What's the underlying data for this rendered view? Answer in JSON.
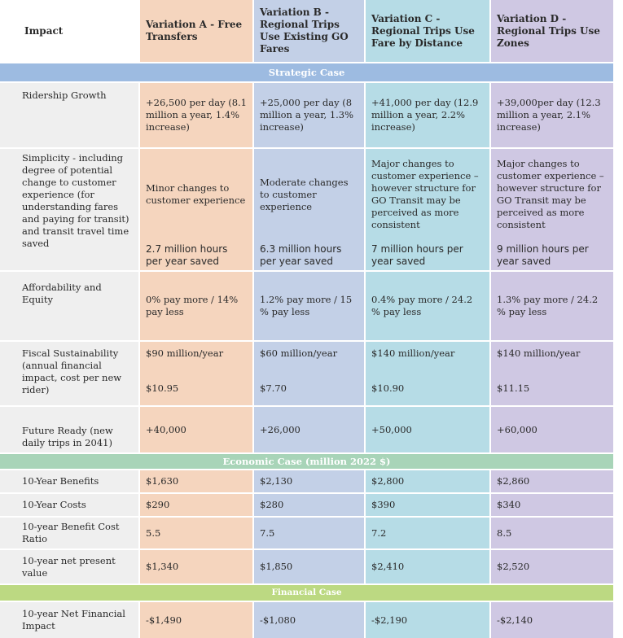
{
  "header": {
    "impact": "Impact",
    "variation_a": "Variation A - Free Transfers",
    "variation_b": "Variation B - Regional Trips Use Existing GO Fares",
    "variation_c": "Variation C - Regional Trips Use Fare by Distance",
    "variation_d": "Variation D - Regional Trips Use Zones"
  },
  "sections": {
    "strategic": "Strategic Case",
    "economic": "Economic Case (million 2022 $)",
    "financial": "Financial Case"
  },
  "rows": {
    "ridership": {
      "label": "Ridership Growth",
      "a": "+26,500 per day (8.1 million a year, 1.4% increase)",
      "b": "+25,000 per day (8 million a year, 1.3% increase)",
      "c": "+41,000 per day (12.9 million a year, 2.2% increase)",
      "d": "+39,000per day (12.3 million a year, 2.1% increase)"
    },
    "simplicity": {
      "label": "Simplicity - including degree of potential change to customer experience (for understanding fares and paying for transit) and transit travel time saved",
      "a1": "Minor changes to customer experience",
      "a2": "2.7 million hours per year saved",
      "b1": "Moderate changes to customer experience",
      "b2": "6.3 million hours per year saved",
      "c1": "Major changes to customer experience – however structure for GO Transit may be perceived as more consistent",
      "c2": "7 million hours per year saved",
      "d1": "Major changes to customer experience – however structure for GO Transit may be perceived as more consistent",
      "d2": "9 million hours per year saved"
    },
    "affordability": {
      "label": "Affordability and Equity",
      "a": "0% pay more / 14% pay less",
      "b": "1.2% pay more / 15 % pay less",
      "c": "0.4% pay more / 24.2 % pay less",
      "d": "1.3% pay more / 24.2 % pay less"
    },
    "fiscal": {
      "label": "Fiscal Sustainability (annual financial impact, cost per new rider)",
      "a1": "$90 million/year",
      "a2": "$10.95",
      "b1": "$60 million/year",
      "b2": "$7.70",
      "c1": "$140 million/year",
      "c2": "$10.90",
      "d1": "$140 million/year",
      "d2": "$11.15"
    },
    "future": {
      "label": "Future Ready (new daily trips in 2041)",
      "a": "+40,000",
      "b": "+26,000",
      "c": "+50,000",
      "d": "+60,000"
    },
    "benefits": {
      "label": "10-Year Benefits",
      "a": "$1,630",
      "b": "$2,130",
      "c": "$2,800",
      "d": "$2,860"
    },
    "costs": {
      "label": "10-Year Costs",
      "a": "$290",
      "b": "$280",
      "c": "$390",
      "d": "$340"
    },
    "bcr": {
      "label": "10-year Benefit Cost Ratio",
      "a": "5.5",
      "b": "7.5",
      "c": "7.2",
      "d": "8.5"
    },
    "npv": {
      "label": "10-year net present value",
      "a": "$1,340",
      "b": "$1,850",
      "c": "$2,410",
      "d": "$2,520"
    },
    "net_financial": {
      "label": "10-year Net Financial Impact",
      "a": "-$1,490",
      "b": "-$1,080",
      "c": "-$2,190",
      "d": "-$2,140"
    }
  },
  "colors": {
    "variation_a": "#f5d5be",
    "variation_b": "#c3d0e7",
    "variation_c": "#b6dce6",
    "variation_d": "#cfc8e3",
    "strategic_band": "#9dbbe1",
    "economic_band": "#a8d4b8",
    "financial_band": "#bcd982",
    "label_column": "#efefef"
  }
}
